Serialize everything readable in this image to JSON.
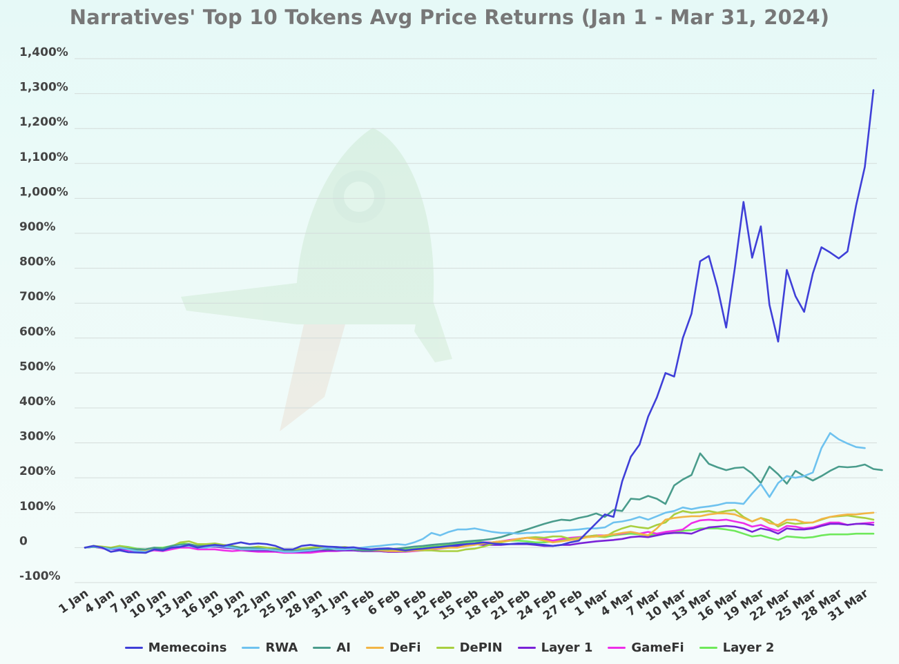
{
  "chart_data": {
    "type": "line",
    "title": "Narratives' Top 10 Tokens Avg Price Returns (Jan 1 - Mar 31, 2024)",
    "xlabel": "",
    "ylabel": "",
    "ylim": [
      -100,
      1400
    ],
    "y_ticks": [
      "1,400%",
      "1,300%",
      "1,200%",
      "1,100%",
      "1,000%",
      "900%",
      "800%",
      "700%",
      "600%",
      "500%",
      "400%",
      "300%",
      "200%",
      "100%",
      "0",
      "-100%"
    ],
    "y_tick_values": [
      1400,
      1300,
      1200,
      1100,
      1000,
      900,
      800,
      700,
      600,
      500,
      400,
      300,
      200,
      100,
      0,
      -100
    ],
    "grid": true,
    "legend_position": "bottom",
    "x_tick_labels": [
      "1 Jan",
      "4 Jan",
      "7 Jan",
      "10 Jan",
      "13 Jan",
      "16 Jan",
      "19 Jan",
      "22 Jan",
      "25 Jan",
      "28 Jan",
      "31 Jan",
      "3 Feb",
      "6 Feb",
      "9 Feb",
      "12 Feb",
      "15 Feb",
      "18 Feb",
      "21 Feb",
      "24 Feb",
      "27 Feb",
      "1 Mar",
      "4 Mar",
      "7 Mar",
      "10 Mar",
      "13 Mar",
      "16 Mar",
      "19 Mar",
      "22 Mar",
      "25 Mar",
      "28 Mar",
      "31 Mar"
    ],
    "x_tick_day_index": [
      1,
      4,
      7,
      10,
      13,
      16,
      19,
      22,
      25,
      28,
      31,
      34,
      37,
      40,
      43,
      46,
      49,
      52,
      55,
      58,
      61,
      64,
      67,
      70,
      73,
      76,
      79,
      82,
      85,
      88,
      91
    ],
    "series": [
      {
        "name": "Memecoins",
        "color": "#3f3fd8",
        "values": [
          0,
          5,
          0,
          -12,
          -8,
          -13,
          -14,
          -15,
          -5,
          -8,
          0,
          2,
          8,
          0,
          5,
          8,
          5,
          10,
          15,
          10,
          12,
          10,
          5,
          -5,
          -5,
          5,
          8,
          5,
          3,
          2,
          0,
          1,
          -3,
          -5,
          -3,
          -2,
          -5,
          -8,
          -5,
          -3,
          0,
          2,
          5,
          8,
          10,
          12,
          15,
          12,
          10,
          10,
          12,
          12,
          10,
          8,
          5,
          8,
          15,
          20,
          45,
          70,
          95,
          88,
          190,
          260,
          295,
          375,
          430,
          500,
          490,
          600,
          670,
          820,
          835,
          745,
          630,
          800,
          990,
          830,
          920,
          695,
          590,
          795,
          720,
          675,
          785,
          860,
          845,
          828,
          848,
          980,
          1090,
          1310
        ]
      },
      {
        "name": "RWA",
        "color": "#6ec2ef",
        "values": [
          0,
          3,
          0,
          -5,
          0,
          -5,
          -10,
          -12,
          -5,
          -8,
          0,
          5,
          5,
          0,
          0,
          5,
          3,
          0,
          -5,
          -5,
          -5,
          -5,
          -8,
          -12,
          -12,
          -10,
          -8,
          -5,
          0,
          -5,
          -5,
          -3,
          0,
          3,
          5,
          8,
          10,
          8,
          15,
          25,
          42,
          35,
          45,
          52,
          52,
          55,
          50,
          45,
          42,
          42,
          40,
          42,
          42,
          45,
          45,
          48,
          50,
          52,
          55,
          55,
          58,
          72,
          75,
          80,
          88,
          80,
          90,
          100,
          105,
          115,
          110,
          115,
          118,
          122,
          128,
          128,
          125,
          155,
          182,
          145,
          185,
          205,
          200,
          205,
          215,
          285,
          328,
          310,
          298,
          288,
          285
        ]
      },
      {
        "name": "AI",
        "color": "#4a9c8c",
        "values": [
          0,
          2,
          0,
          -3,
          0,
          -3,
          -5,
          -5,
          0,
          -3,
          5,
          8,
          10,
          5,
          5,
          8,
          5,
          3,
          0,
          0,
          -2,
          -5,
          -5,
          -10,
          -10,
          -8,
          -5,
          -3,
          -5,
          -3,
          -3,
          -5,
          -8,
          -8,
          -5,
          -5,
          -3,
          0,
          3,
          5,
          8,
          10,
          12,
          15,
          18,
          20,
          22,
          25,
          30,
          38,
          45,
          52,
          60,
          68,
          75,
          80,
          78,
          85,
          90,
          98,
          88,
          108,
          105,
          140,
          138,
          148,
          140,
          125,
          178,
          195,
          208,
          270,
          240,
          230,
          222,
          228,
          230,
          212,
          185,
          232,
          210,
          183,
          220,
          205,
          192,
          205,
          220,
          232,
          230,
          232,
          238,
          225,
          222
        ]
      },
      {
        "name": "DeFi",
        "color": "#f2b545",
        "values": [
          0,
          2,
          0,
          -3,
          0,
          -3,
          -5,
          -8,
          -3,
          -5,
          2,
          5,
          5,
          3,
          5,
          5,
          3,
          0,
          -5,
          -5,
          -3,
          -5,
          -8,
          -10,
          -10,
          -8,
          -5,
          -5,
          -3,
          -5,
          -3,
          -5,
          -8,
          -8,
          -8,
          -10,
          -10,
          -8,
          -8,
          -5,
          -3,
          -2,
          0,
          0,
          5,
          8,
          12,
          15,
          18,
          20,
          25,
          28,
          25,
          20,
          15,
          18,
          22,
          25,
          30,
          32,
          35,
          38,
          42,
          45,
          40,
          35,
          55,
          80,
          85,
          88,
          90,
          90,
          95,
          98,
          98,
          95,
          85,
          75,
          85,
          70,
          65,
          80,
          80,
          72,
          72,
          82,
          88,
          92,
          95,
          95,
          98,
          100
        ]
      },
      {
        "name": "DePIN",
        "color": "#a8cf3f",
        "values": [
          0,
          5,
          3,
          0,
          5,
          0,
          -5,
          -8,
          -3,
          -5,
          3,
          15,
          18,
          10,
          10,
          12,
          8,
          5,
          0,
          0,
          3,
          0,
          -2,
          -5,
          -5,
          -3,
          0,
          2,
          3,
          0,
          2,
          -2,
          -5,
          -5,
          -5,
          -8,
          -10,
          -10,
          -8,
          -8,
          -8,
          -10,
          -10,
          -10,
          -5,
          -3,
          3,
          10,
          15,
          20,
          25,
          28,
          30,
          28,
          32,
          32,
          25,
          28,
          32,
          35,
          30,
          45,
          55,
          62,
          58,
          55,
          65,
          72,
          95,
          105,
          100,
          102,
          105,
          100,
          105,
          108,
          88,
          75,
          85,
          78,
          60,
          72,
          68,
          70,
          72,
          80,
          88,
          90,
          92,
          88,
          85,
          80
        ]
      },
      {
        "name": "Layer 1",
        "color": "#7a22d8",
        "values": [
          0,
          2,
          0,
          -5,
          -3,
          -5,
          -8,
          -8,
          -5,
          -5,
          0,
          3,
          5,
          0,
          2,
          3,
          0,
          -2,
          -5,
          -8,
          -8,
          -8,
          -10,
          -10,
          -12,
          -12,
          -10,
          -8,
          -8,
          -8,
          -8,
          -8,
          -10,
          -10,
          -10,
          -12,
          -12,
          -10,
          -8,
          -5,
          -3,
          0,
          2,
          5,
          8,
          10,
          8,
          8,
          8,
          10,
          10,
          10,
          8,
          5,
          5,
          8,
          8,
          12,
          15,
          18,
          20,
          22,
          25,
          30,
          32,
          30,
          35,
          40,
          42,
          42,
          40,
          50,
          58,
          60,
          62,
          60,
          55,
          45,
          55,
          50,
          40,
          55,
          52,
          52,
          55,
          62,
          68,
          68,
          65,
          68,
          68,
          65
        ]
      },
      {
        "name": "GameFi",
        "color": "#ee2ee8",
        "values": [
          0,
          2,
          -2,
          -5,
          -5,
          -8,
          -10,
          -12,
          -8,
          -10,
          -5,
          0,
          0,
          -5,
          -5,
          -5,
          -8,
          -10,
          -8,
          -10,
          -12,
          -12,
          -12,
          -15,
          -15,
          -15,
          -15,
          -12,
          -10,
          -10,
          -8,
          -8,
          -10,
          -10,
          -10,
          -12,
          -12,
          -12,
          -10,
          -8,
          -5,
          -3,
          0,
          2,
          5,
          10,
          15,
          15,
          18,
          22,
          25,
          28,
          28,
          25,
          20,
          25,
          28,
          30,
          32,
          35,
          35,
          38,
          40,
          45,
          40,
          45,
          40,
          45,
          48,
          52,
          70,
          78,
          80,
          78,
          80,
          75,
          70,
          60,
          65,
          55,
          48,
          62,
          60,
          55,
          58,
          65,
          72,
          72,
          65,
          68,
          70,
          72
        ]
      },
      {
        "name": "Layer 2",
        "color": "#6ee85a",
        "values": [
          0,
          5,
          2,
          -2,
          5,
          2,
          -3,
          -5,
          0,
          0,
          5,
          12,
          10,
          5,
          8,
          10,
          5,
          3,
          0,
          0,
          0,
          -2,
          -5,
          -5,
          -8,
          -5,
          -3,
          0,
          -2,
          -3,
          -3,
          -5,
          -8,
          -8,
          -8,
          -8,
          -5,
          -5,
          -3,
          0,
          3,
          5,
          8,
          12,
          15,
          18,
          15,
          15,
          18,
          20,
          20,
          18,
          15,
          15,
          18,
          22,
          25,
          28,
          30,
          32,
          30,
          35,
          38,
          40,
          38,
          35,
          40,
          42,
          45,
          48,
          50,
          55,
          55,
          55,
          52,
          48,
          40,
          32,
          35,
          28,
          22,
          32,
          30,
          28,
          30,
          35,
          38,
          38,
          38,
          40,
          40,
          40
        ]
      }
    ]
  }
}
